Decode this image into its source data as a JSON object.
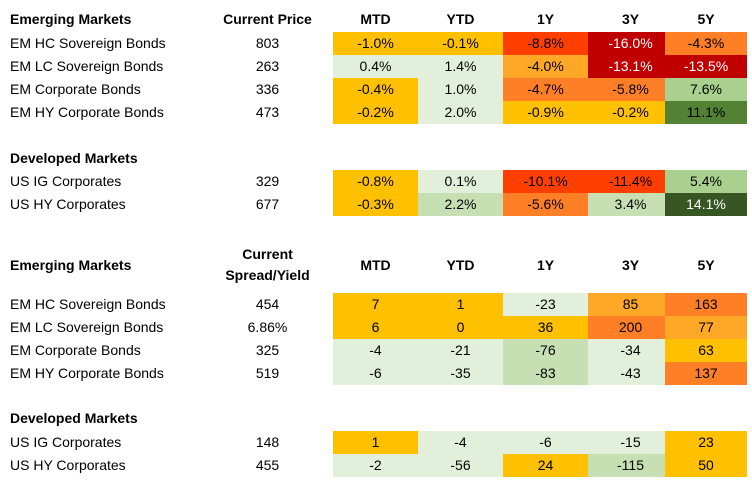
{
  "colors": {
    "dark_red": "#C00000",
    "red": "#FF3F00",
    "orange": "#FF7F27",
    "light_orange": "#FFA726",
    "yellow": "#FFC000",
    "pale_green": "#E2EFDA",
    "light_green": "#C6E0B4",
    "mid_green": "#A9D08E",
    "dark_green": "#548235",
    "darkest_green": "#375623",
    "white": "#FFFFFF"
  },
  "table1": {
    "header": {
      "section": "Emerging Markets",
      "current": "Current Price",
      "cols": [
        "MTD",
        "YTD",
        "1Y",
        "3Y",
        "5Y"
      ]
    },
    "rows": [
      {
        "label": "EM HC Sovereign Bonds",
        "current": "803",
        "values": [
          "-1.0%",
          "-0.1%",
          "-8.8%",
          "-16.0%",
          "-4.3%"
        ],
        "colors": [
          "#FFC000",
          "#FFC000",
          "#FF3F00",
          "#C00000",
          "#FF7F27"
        ],
        "text_colors": [
          "#000",
          "#000",
          "#000",
          "#fff",
          "#000"
        ]
      },
      {
        "label": "EM LC Sovereign Bonds",
        "current": "263",
        "values": [
          "0.4%",
          "1.4%",
          "-4.0%",
          "-13.1%",
          "-13.5%"
        ],
        "colors": [
          "#E2EFDA",
          "#E2EFDA",
          "#FFA726",
          "#C00000",
          "#C00000"
        ],
        "text_colors": [
          "#000",
          "#000",
          "#000",
          "#fff",
          "#fff"
        ]
      },
      {
        "label": "EM Corporate Bonds",
        "current": "336",
        "values": [
          "-0.4%",
          "1.0%",
          "-4.7%",
          "-5.8%",
          "7.6%"
        ],
        "colors": [
          "#FFC000",
          "#E2EFDA",
          "#FF7F27",
          "#FF7F27",
          "#A9D08E"
        ],
        "text_colors": [
          "#000",
          "#000",
          "#000",
          "#000",
          "#000"
        ]
      },
      {
        "label": "EM HY Corporate Bonds",
        "current": "473",
        "values": [
          "-0.2%",
          "2.0%",
          "-0.9%",
          "-0.2%",
          "11.1%"
        ],
        "colors": [
          "#FFC000",
          "#E2EFDA",
          "#FFC000",
          "#FFC000",
          "#548235"
        ],
        "text_colors": [
          "#000",
          "#000",
          "#000",
          "#000",
          "#000"
        ]
      }
    ],
    "dev_section": "Developed Markets",
    "dev_rows": [
      {
        "label": "US IG Corporates",
        "current": "329",
        "values": [
          "-0.8%",
          "0.1%",
          "-10.1%",
          "-11.4%",
          "5.4%"
        ],
        "colors": [
          "#FFC000",
          "#E2EFDA",
          "#FF3F00",
          "#FF3F00",
          "#A9D08E"
        ],
        "text_colors": [
          "#000",
          "#000",
          "#000",
          "#000",
          "#000"
        ]
      },
      {
        "label": "US HY Corporates",
        "current": "677",
        "values": [
          "-0.3%",
          "2.2%",
          "-5.6%",
          "3.4%",
          "14.1%"
        ],
        "colors": [
          "#FFC000",
          "#C6E0B4",
          "#FF7F27",
          "#C6E0B4",
          "#375623"
        ],
        "text_colors": [
          "#000",
          "#000",
          "#000",
          "#000",
          "#fff"
        ]
      }
    ]
  },
  "table2": {
    "header": {
      "section": "Emerging Markets",
      "current_line1": "Current",
      "current_line2": "Spread/Yield",
      "cols": [
        "MTD",
        "YTD",
        "1Y",
        "3Y",
        "5Y"
      ]
    },
    "rows": [
      {
        "label": "EM HC Sovereign Bonds",
        "current": "454",
        "values": [
          "7",
          "1",
          "-23",
          "85",
          "163"
        ],
        "colors": [
          "#FFC000",
          "#FFC000",
          "#E2EFDA",
          "#FFA726",
          "#FF7F27"
        ],
        "text_colors": [
          "#000",
          "#000",
          "#000",
          "#000",
          "#000"
        ]
      },
      {
        "label": "EM LC Sovereign Bonds",
        "current": "6.86%",
        "values": [
          "6",
          "0",
          "36",
          "200",
          "77"
        ],
        "colors": [
          "#FFC000",
          "#FFC000",
          "#FFC000",
          "#FF7F27",
          "#FFA726"
        ],
        "text_colors": [
          "#000",
          "#000",
          "#000",
          "#000",
          "#000"
        ]
      },
      {
        "label": "EM Corporate Bonds",
        "current": "325",
        "values": [
          "-4",
          "-21",
          "-76",
          "-34",
          "63"
        ],
        "colors": [
          "#E2EFDA",
          "#E2EFDA",
          "#C6E0B4",
          "#E2EFDA",
          "#FFC000"
        ],
        "text_colors": [
          "#000",
          "#000",
          "#000",
          "#000",
          "#000"
        ]
      },
      {
        "label": "EM HY Corporate Bonds",
        "current": "519",
        "values": [
          "-6",
          "-35",
          "-83",
          "-43",
          "137"
        ],
        "colors": [
          "#E2EFDA",
          "#E2EFDA",
          "#C6E0B4",
          "#E2EFDA",
          "#FF7F27"
        ],
        "text_colors": [
          "#000",
          "#000",
          "#000",
          "#000",
          "#000"
        ]
      }
    ],
    "dev_section": "Developed Markets",
    "dev_rows": [
      {
        "label": "US IG Corporates",
        "current": "148",
        "values": [
          "1",
          "-4",
          "-6",
          "-15",
          "23"
        ],
        "colors": [
          "#FFC000",
          "#E2EFDA",
          "#E2EFDA",
          "#E2EFDA",
          "#FFC000"
        ],
        "text_colors": [
          "#000",
          "#000",
          "#000",
          "#000",
          "#000"
        ]
      },
      {
        "label": "US HY Corporates",
        "current": "455",
        "values": [
          "-2",
          "-56",
          "24",
          "-115",
          "50"
        ],
        "colors": [
          "#E2EFDA",
          "#E2EFDA",
          "#FFC000",
          "#C6E0B4",
          "#FFC000"
        ],
        "text_colors": [
          "#000",
          "#000",
          "#000",
          "#000",
          "#000"
        ]
      }
    ]
  }
}
